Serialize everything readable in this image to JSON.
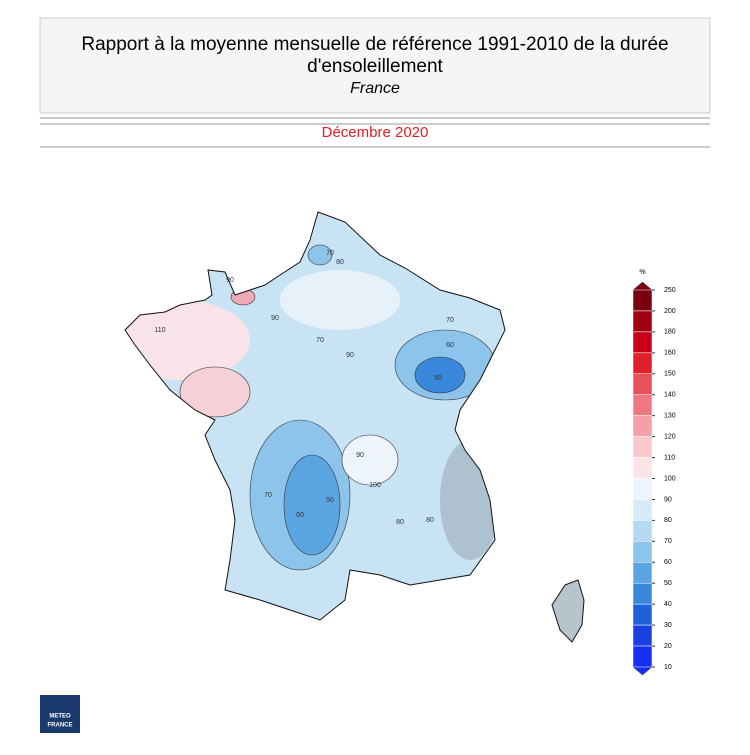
{
  "header": {
    "title_line1": "Rapport à la moyenne mensuelle de référence 1991-2010 de la durée",
    "title_line2": "d'ensoleillement",
    "region": "France"
  },
  "period": "Décembre 2020",
  "legend": {
    "unit": "%",
    "ticks": [
      250,
      200,
      180,
      160,
      150,
      140,
      130,
      120,
      110,
      100,
      90,
      80,
      70,
      60,
      50,
      40,
      30,
      20,
      10
    ],
    "colors": [
      "#7a0010",
      "#a00010",
      "#c8001a",
      "#e0202a",
      "#e8505a",
      "#ee7880",
      "#f3a0a8",
      "#f8c8cc",
      "#fbe4e6",
      "#eef4fb",
      "#d8eaf7",
      "#b4d9f2",
      "#8cc4ec",
      "#5aa6e2",
      "#3a88dc",
      "#2060d8",
      "#1a40e0",
      "#1530f0"
    ]
  },
  "contour_labels": [
    70,
    80,
    90,
    110,
    90,
    70,
    60,
    50,
    70,
    90,
    100,
    80,
    90,
    60,
    50,
    80,
    70
  ],
  "logo": {
    "line1": "METEO",
    "line2": "FRANCE"
  }
}
